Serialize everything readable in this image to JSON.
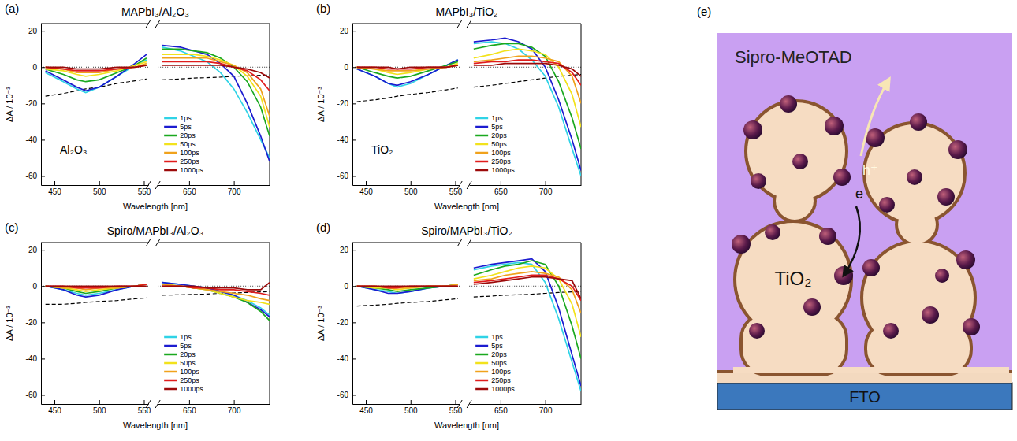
{
  "chart_data": [
    {
      "type": "line",
      "panel_label": "(a)",
      "title": "MAPbI₃/Al₂O₃",
      "x_label": "Wavelength [nm]",
      "y_label": "ΔA / 10⁻³",
      "annotation": "Al₂O₃",
      "x": [
        440,
        460,
        475,
        485,
        500,
        520,
        540,
        553,
        620,
        640,
        655,
        670,
        685,
        700,
        715,
        730,
        740
      ],
      "xlim": [
        435,
        740
      ],
      "xbreak": [
        555,
        615
      ],
      "xticks": [
        450,
        500,
        550,
        650,
        700
      ],
      "ylim": [
        -65,
        24
      ],
      "yticks": [
        -60,
        -40,
        -20,
        0,
        20
      ],
      "zero_line": 0,
      "legend": "lower center",
      "series": [
        {
          "color": "#000000",
          "line_style": "dashed",
          "values": [
            -16,
            -14.5,
            -13,
            -12,
            -11,
            -9,
            -7.5,
            -6.5,
            -7,
            -6.5,
            -6,
            -5.8,
            -5.5,
            -5,
            -4.8,
            -4.5,
            -4.3
          ]
        },
        {
          "name": "1ps",
          "color": "#2fd3e6",
          "values": [
            -3,
            -8,
            -12,
            -14,
            -11,
            -5,
            1,
            4,
            11,
            9,
            6,
            3,
            -3,
            -12,
            -25,
            -40,
            -50
          ]
        },
        {
          "name": "5ps",
          "color": "#1c1cd0",
          "values": [
            -2,
            -7,
            -11,
            -13,
            -11,
            -5,
            2,
            7,
            12,
            11,
            9,
            7,
            2,
            -5,
            -20,
            -38,
            -52
          ]
        },
        {
          "name": "20ps",
          "color": "#1aa81f",
          "values": [
            -1,
            -4,
            -7,
            -8,
            -7,
            -3,
            1,
            5,
            10,
            10,
            9,
            8,
            5,
            0,
            -8,
            -22,
            -38
          ]
        },
        {
          "name": "50ps",
          "color": "#f2e21c",
          "values": [
            -1,
            -2,
            -4,
            -5,
            -4,
            -2,
            1,
            3,
            7,
            7,
            7,
            6,
            4,
            1,
            -5,
            -16,
            -33
          ]
        },
        {
          "name": "100ps",
          "color": "#f0a21c",
          "values": [
            0,
            -1,
            -3,
            -3,
            -3,
            -1,
            0,
            2,
            5,
            5,
            5,
            5,
            3,
            1,
            -3,
            -12,
            -27
          ]
        },
        {
          "name": "250ps",
          "color": "#e01c1c",
          "values": [
            0,
            -1,
            -2,
            -2,
            -2,
            -1,
            0,
            1,
            3,
            3,
            3,
            3,
            2,
            0,
            -2,
            -7,
            -13
          ]
        },
        {
          "name": "1000ps",
          "color": "#9c0a0a",
          "values": [
            0,
            0,
            -1,
            -1,
            -1,
            0,
            0,
            1,
            1,
            1,
            1,
            1,
            1,
            0,
            -1,
            -3,
            -6
          ]
        }
      ]
    },
    {
      "type": "line",
      "panel_label": "(b)",
      "title": "MAPbI₃/TiO₂",
      "x_label": "Wavelength [nm]",
      "y_label": "ΔA / 10⁻³",
      "annotation": "TiO₂",
      "x": [
        440,
        460,
        475,
        485,
        500,
        520,
        540,
        553,
        620,
        640,
        655,
        670,
        685,
        700,
        715,
        730,
        740
      ],
      "xlim": [
        435,
        740
      ],
      "xbreak": [
        555,
        615
      ],
      "xticks": [
        450,
        500,
        550,
        650,
        700
      ],
      "ylim": [
        -65,
        24
      ],
      "yticks": [
        -60,
        -40,
        -20,
        0,
        20
      ],
      "zero_line": 0,
      "legend": "lower center",
      "series": [
        {
          "color": "#000000",
          "line_style": "dashed",
          "values": [
            -19,
            -18,
            -17,
            -16,
            -15,
            -14,
            -12.5,
            -11.5,
            -11,
            -10,
            -9,
            -8,
            -7,
            -6,
            -5,
            -4.5,
            -4
          ]
        },
        {
          "name": "1ps",
          "color": "#2fd3e6",
          "values": [
            -1,
            -5,
            -9,
            -11,
            -9,
            -4,
            1,
            4,
            13,
            14,
            13,
            10,
            4,
            -5,
            -22,
            -45,
            -60
          ]
        },
        {
          "name": "5ps",
          "color": "#1c1cd0",
          "values": [
            -1,
            -5,
            -9,
            -10,
            -8,
            -4,
            1,
            4,
            14,
            15,
            16,
            14,
            10,
            0,
            -18,
            -40,
            -57
          ]
        },
        {
          "name": "20ps",
          "color": "#1aa81f",
          "values": [
            0,
            -3,
            -5,
            -6,
            -5,
            -2,
            1,
            3,
            10,
            12,
            13,
            13,
            11,
            6,
            -8,
            -28,
            -45
          ]
        },
        {
          "name": "50ps",
          "color": "#f2e21c",
          "values": [
            0,
            -1,
            -3,
            -4,
            -3,
            -1,
            0,
            2,
            5,
            7,
            9,
            10,
            9,
            7,
            0,
            -15,
            -33
          ]
        },
        {
          "name": "100ps",
          "color": "#f0a21c",
          "values": [
            0,
            -1,
            -2,
            -2,
            -2,
            -1,
            0,
            1,
            3,
            4,
            5,
            6,
            6,
            5,
            3,
            -5,
            -20
          ]
        },
        {
          "name": "250ps",
          "color": "#e01c1c",
          "values": [
            0,
            0,
            -1,
            -1,
            -1,
            0,
            0,
            1,
            2,
            3,
            3,
            4,
            4,
            3,
            2,
            -3,
            -10
          ]
        },
        {
          "name": "1000ps",
          "color": "#9c0a0a",
          "values": [
            0,
            0,
            0,
            -1,
            0,
            0,
            0,
            1,
            1,
            1,
            2,
            2,
            2,
            2,
            1,
            -1,
            -5
          ]
        }
      ]
    },
    {
      "type": "line",
      "panel_label": "(c)",
      "title": "Spiro/MAPbI₃/Al₂O₃",
      "x_label": "Wavelength [nm]",
      "y_label": "ΔA / 10⁻³",
      "x": [
        440,
        460,
        475,
        485,
        500,
        520,
        540,
        553,
        620,
        640,
        655,
        670,
        685,
        700,
        715,
        730,
        740
      ],
      "xlim": [
        435,
        740
      ],
      "xbreak": [
        555,
        615
      ],
      "xticks": [
        450,
        500,
        550,
        650,
        700
      ],
      "ylim": [
        -65,
        24
      ],
      "yticks": [
        -60,
        -40,
        -20,
        0,
        20
      ],
      "zero_line": 0,
      "legend": "lower center",
      "series": [
        {
          "color": "#000000",
          "line_style": "dashed",
          "values": [
            -10,
            -10,
            -9.5,
            -9,
            -8.5,
            -8,
            -7,
            -6.5,
            -5,
            -4.8,
            -4.6,
            -4.4,
            -4,
            -3.8,
            -3.5,
            -3.2,
            -3
          ]
        },
        {
          "name": "1ps",
          "color": "#2fd3e6",
          "values": [
            0,
            -2,
            -4,
            -5,
            -4,
            -2,
            0,
            1,
            2,
            1,
            0,
            -1,
            -3,
            -5,
            -8,
            -12,
            -16
          ]
        },
        {
          "name": "5ps",
          "color": "#1c1cd0",
          "values": [
            0,
            -2,
            -5,
            -6,
            -5,
            -2,
            0,
            1,
            2,
            1,
            0,
            -1,
            -3,
            -5,
            -9,
            -13,
            -17
          ]
        },
        {
          "name": "20ps",
          "color": "#1aa81f",
          "values": [
            0,
            -1,
            -3,
            -4,
            -3,
            -1,
            0,
            1,
            1,
            0,
            -1,
            -2,
            -4,
            -6,
            -9,
            -14,
            -19
          ]
        },
        {
          "name": "50ps",
          "color": "#f2e21c",
          "values": [
            0,
            -1,
            -2,
            -3,
            -2,
            -1,
            0,
            1,
            1,
            0,
            -1,
            -2,
            -4,
            -6,
            -8,
            -9,
            -10
          ]
        },
        {
          "name": "100ps",
          "color": "#f0a21c",
          "values": [
            0,
            -1,
            -1,
            -2,
            -1,
            -1,
            0,
            1,
            1,
            0,
            -1,
            -2,
            -3,
            -4,
            -5,
            -7,
            -8
          ]
        },
        {
          "name": "250ps",
          "color": "#e01c1c",
          "values": [
            0,
            0,
            -1,
            -1,
            -1,
            0,
            0,
            1,
            0,
            0,
            -1,
            -1,
            -2,
            -2,
            -3,
            -4,
            -5
          ]
        },
        {
          "name": "1000ps",
          "color": "#9c0a0a",
          "values": [
            0,
            0,
            0,
            0,
            0,
            0,
            0,
            0,
            0,
            0,
            0,
            -1,
            -1,
            -1,
            -2,
            -2,
            2
          ]
        }
      ]
    },
    {
      "type": "line",
      "panel_label": "(d)",
      "title": "Spiro/MAPbI₃/TiO₂",
      "x_label": "Wavelength [nm]",
      "y_label": "ΔA / 10⁻³",
      "x": [
        440,
        460,
        475,
        485,
        500,
        520,
        540,
        553,
        620,
        640,
        655,
        670,
        685,
        700,
        715,
        730,
        740
      ],
      "xlim": [
        435,
        740
      ],
      "xbreak": [
        555,
        615
      ],
      "xticks": [
        450,
        500,
        550,
        650,
        700
      ],
      "ylim": [
        -65,
        24
      ],
      "yticks": [
        -60,
        -40,
        -20,
        0,
        20
      ],
      "zero_line": 0,
      "legend": "lower center",
      "series": [
        {
          "color": "#000000",
          "line_style": "dashed",
          "values": [
            -11,
            -10.5,
            -10,
            -9.5,
            -9,
            -8.5,
            -7.5,
            -7,
            -6,
            -5.5,
            -5,
            -4.8,
            -4.5,
            -4,
            -3.5,
            -3.2,
            -3
          ]
        },
        {
          "name": "1ps",
          "color": "#2fd3e6",
          "values": [
            0,
            -2,
            -3,
            -4,
            -3,
            -1,
            0,
            1,
            9,
            11,
            12,
            13,
            12,
            2,
            -18,
            -42,
            -58
          ]
        },
        {
          "name": "5ps",
          "color": "#1c1cd0",
          "values": [
            0,
            -2,
            -4,
            -4,
            -3,
            -1,
            0,
            1,
            10,
            12,
            13,
            14,
            15,
            8,
            -12,
            -38,
            -55
          ]
        },
        {
          "name": "20ps",
          "color": "#1aa81f",
          "values": [
            0,
            -1,
            -2,
            -3,
            -2,
            -1,
            0,
            1,
            6,
            9,
            11,
            12,
            14,
            12,
            0,
            -22,
            -40
          ]
        },
        {
          "name": "50ps",
          "color": "#f2e21c",
          "values": [
            0,
            -1,
            -1,
            -2,
            -1,
            0,
            0,
            1,
            4,
            6,
            8,
            10,
            11,
            10,
            4,
            -10,
            -28
          ]
        },
        {
          "name": "100ps",
          "color": "#f0a21c",
          "values": [
            0,
            0,
            -1,
            -1,
            -1,
            0,
            0,
            1,
            3,
            4,
            6,
            7,
            8,
            7,
            5,
            -2,
            -15
          ]
        },
        {
          "name": "250ps",
          "color": "#e01c1c",
          "values": [
            0,
            0,
            -1,
            -1,
            0,
            0,
            0,
            0,
            2,
            3,
            4,
            5,
            6,
            6,
            4,
            0,
            -8
          ]
        },
        {
          "name": "1000ps",
          "color": "#9c0a0a",
          "values": [
            0,
            0,
            0,
            0,
            0,
            0,
            0,
            0,
            1,
            2,
            3,
            4,
            5,
            5,
            4,
            3,
            -7
          ]
        }
      ]
    }
  ],
  "diagram": {
    "panel_label": "(e)",
    "hole_transporter": "Sipro-MeOTAD",
    "particle": "TiO₂",
    "hole": "h⁺",
    "electron": "e⁻",
    "substrate": "FTO"
  }
}
